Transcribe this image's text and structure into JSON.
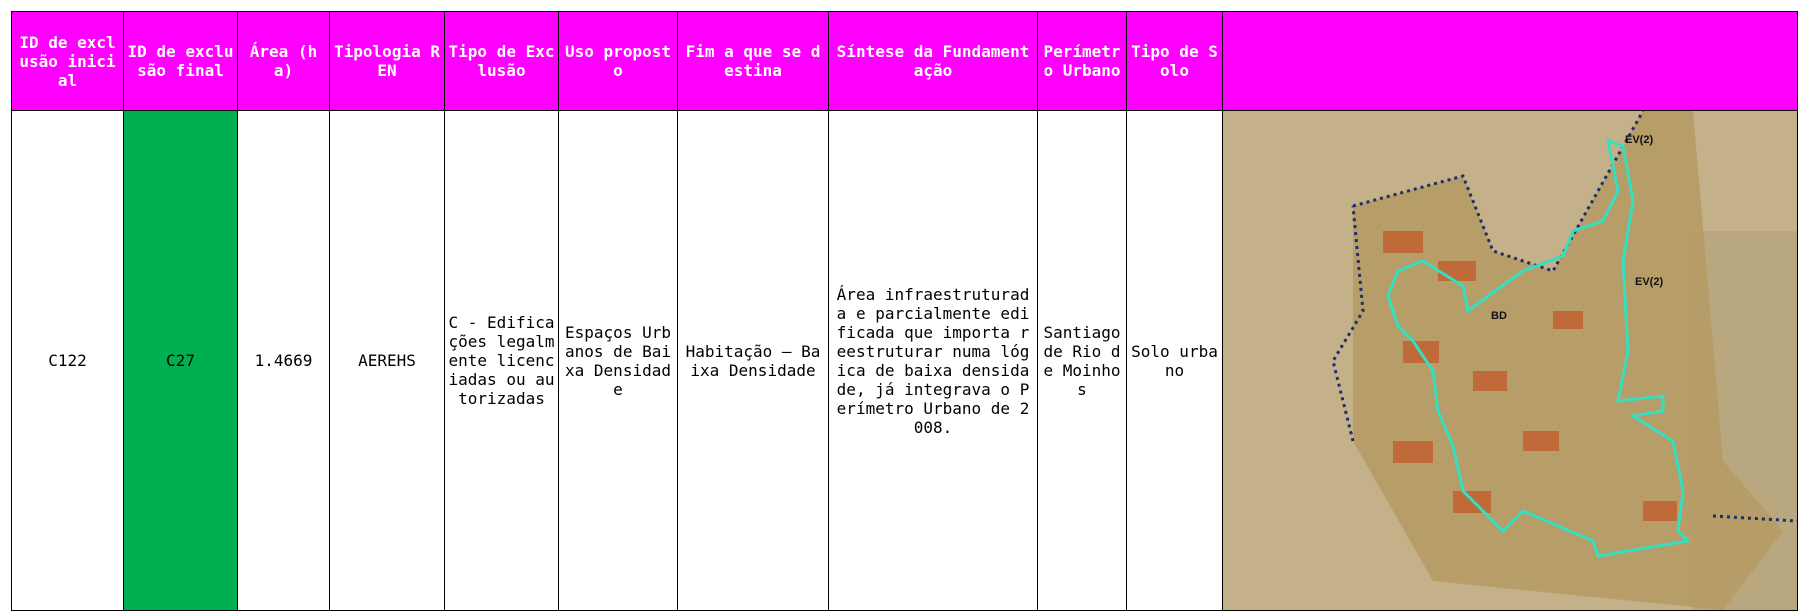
{
  "table": {
    "headers": [
      "ID de exclusão inicial",
      "ID de exclusão final",
      "Área (ha)",
      "Tipologia REN",
      "Tipo de Exclusão",
      "Uso proposto",
      "Fim a que se destina",
      "Síntese da Fundamentação",
      "Perímetro Urbano",
      "Tipo de Solo"
    ],
    "rows": [
      [
        "C122",
        "C27",
        "1.4669",
        "AEREHS",
        "C - Edificações legalmente licenciadas ou autorizadas",
        "Espaços Urbanos de Baixa Densidade",
        "Habitação – Baixa Densidade",
        "Área infraestruturada e parcialmente edificada que importa reestruturar numa lógica de baixa densidade, já integrava o Perímetro Urbano de 2008.",
        "Santiago de Rio de Moinhos",
        "Solo urbano"
      ]
    ]
  },
  "map": {
    "labels": [
      "EV(2)",
      "EV(2)",
      "BD"
    ]
  }
}
